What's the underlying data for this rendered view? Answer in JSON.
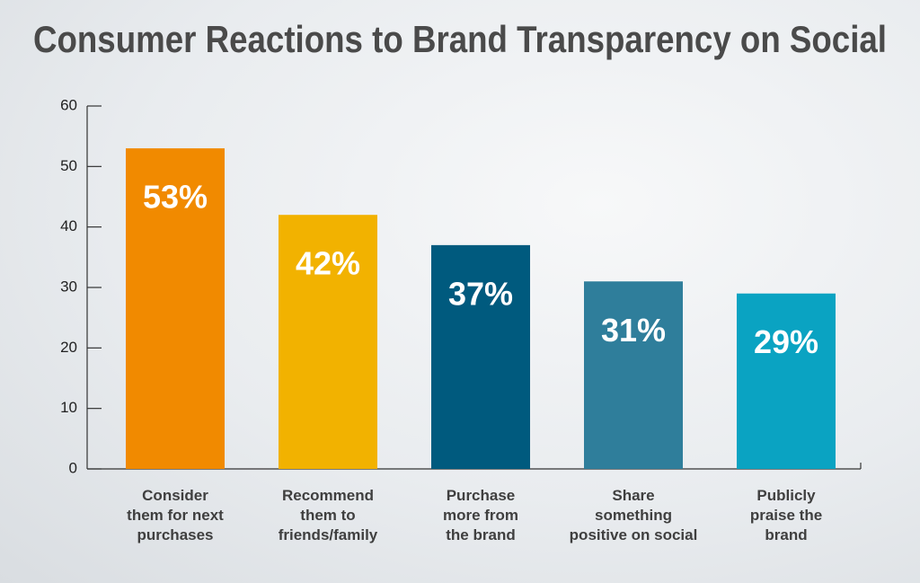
{
  "chart_data": {
    "type": "bar",
    "title": "Consumer Reactions to Brand Transparency on Social",
    "categories": [
      "Consider\nthem for next\npurchases",
      "Recommend\nthem to\nfriends/family",
      "Purchase\nmore from\nthe brand",
      "Share\nsomething\npositive on social",
      "Publicly\npraise the\nbrand"
    ],
    "values": [
      53,
      42,
      37,
      31,
      29
    ],
    "value_labels": [
      "53%",
      "42%",
      "37%",
      "31%",
      "29%"
    ],
    "colors": [
      "#f18a00",
      "#f2b200",
      "#005a7e",
      "#2f7e9b",
      "#0aa3c2"
    ],
    "ylim": [
      0,
      60
    ],
    "yticks": [
      0,
      10,
      20,
      30,
      40,
      50,
      60
    ]
  }
}
